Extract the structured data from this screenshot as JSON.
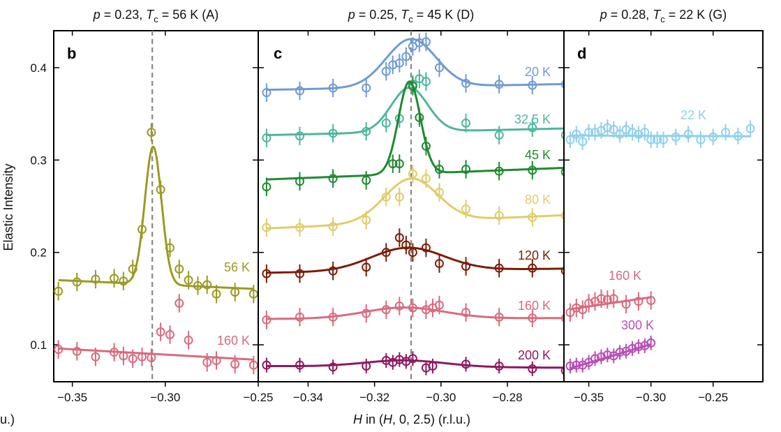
{
  "ylabel": "Elastic Intensity",
  "xlabel": "H in (H, 0, 2.5) (r.l.u.)",
  "cutoff_label": "u.)",
  "ylim": [
    0.06,
    0.44
  ],
  "yticks": [
    "0.1",
    "0.2",
    "0.3",
    "0.4"
  ],
  "colors": {
    "olive": "#9a9a22",
    "pink": "#d96a7e",
    "blue": "#6e9bd4",
    "teal": "#4fb59e",
    "green": "#1e8a30",
    "yellow": "#e0cc6a",
    "brown": "#7a1d08",
    "plum": "#8e1860",
    "lightblue": "#8fd0ec",
    "magenta": "#b74fb7",
    "guide": "#888888"
  },
  "chart_data": [
    {
      "type": "scatter",
      "panel": "b",
      "title": "p = 0.23, Tc = 56 K (A)",
      "title_parts": {
        "p": "p",
        "eq1": " = 0.23, ",
        "T": "T",
        "sub": "c",
        "rest": " = 56 K (A)"
      },
      "xlim": [
        -0.36,
        -0.25
      ],
      "xticks": [
        "-0.35",
        "-0.30",
        "-0.25"
      ],
      "xtick_values": [
        -0.35,
        -0.3,
        -0.25
      ],
      "guide_line_x": -0.307,
      "series": [
        {
          "name": "56 K",
          "color": "olive",
          "x": [
            -0.3575,
            -0.3475,
            -0.3375,
            -0.3275,
            -0.3225,
            -0.3175,
            -0.3125,
            -0.3075,
            -0.3025,
            -0.2975,
            -0.2925,
            -0.2875,
            -0.2825,
            -0.2775,
            -0.2725,
            -0.2625,
            -0.2525
          ],
          "y": [
            0.158,
            0.168,
            0.171,
            0.172,
            0.169,
            0.182,
            0.225,
            0.33,
            0.268,
            0.205,
            0.182,
            0.17,
            0.164,
            0.165,
            0.155,
            0.157,
            0.155
          ],
          "err": 0.01,
          "fit": {
            "base": 0.17,
            "slope": -0.09,
            "amp": 0.149,
            "center": -0.3065,
            "width": 0.0045
          }
        },
        {
          "name": "160 K",
          "color": "pink",
          "x": [
            -0.3575,
            -0.3475,
            -0.3375,
            -0.3275,
            -0.3225,
            -0.3175,
            -0.3125,
            -0.3075,
            -0.3025,
            -0.2975,
            -0.2925,
            -0.2875,
            -0.2775,
            -0.2725,
            -0.2625,
            -0.2525
          ],
          "y": [
            0.095,
            0.093,
            0.087,
            0.092,
            0.088,
            0.085,
            0.087,
            0.086,
            0.114,
            0.111,
            0.145,
            0.105,
            0.081,
            0.083,
            0.079,
            0.078
          ],
          "err": 0.01,
          "fit": {
            "base": 0.096,
            "slope": -0.115,
            "amp": 0,
            "center": -0.3,
            "width": 0.01
          }
        }
      ]
    },
    {
      "type": "scatter",
      "panel": "c",
      "title": "p = 0.25, Tc = 45 K (D)",
      "title_parts": {
        "p": "p",
        "eq1": " = 0.25, ",
        "T": "T",
        "sub": "c",
        "rest": " = 45 K (D)"
      },
      "xlim": [
        -0.355,
        -0.263
      ],
      "xticks": [
        "-0.34",
        "-0.32",
        "-0.30",
        "-0.28"
      ],
      "xtick_values": [
        -0.34,
        -0.32,
        -0.3,
        -0.28
      ],
      "guide_line_x": -0.309,
      "series": [
        {
          "name": "20 K",
          "color": "blue",
          "x": [
            -0.3525,
            -0.3425,
            -0.3325,
            -0.3225,
            -0.3165,
            -0.3145,
            -0.3125,
            -0.3105,
            -0.3085,
            -0.3065,
            -0.3045,
            -0.3005,
            -0.2925,
            -0.2825,
            -0.2725,
            -0.2625
          ],
          "y": [
            0.373,
            0.375,
            0.378,
            0.378,
            0.396,
            0.403,
            0.405,
            0.412,
            0.423,
            0.427,
            0.428,
            0.4,
            0.383,
            0.382,
            0.381,
            0.382
          ],
          "err": 0.01,
          "fit": {
            "base": 0.376,
            "slope": 0.07,
            "amp": 0.052,
            "center": -0.309,
            "width": 0.0075
          }
        },
        {
          "name": "32.5 K",
          "color": "teal",
          "x": [
            -0.3525,
            -0.3425,
            -0.3325,
            -0.3225,
            -0.3165,
            -0.3125,
            -0.3085,
            -0.3065,
            -0.3045,
            -0.2925,
            -0.2825,
            -0.2725,
            -0.2625
          ],
          "y": [
            0.324,
            0.326,
            0.329,
            0.331,
            0.34,
            0.345,
            0.382,
            0.388,
            0.385,
            0.34,
            0.327,
            0.335,
            0.327
          ],
          "err": 0.01,
          "fit": {
            "base": 0.327,
            "slope": 0.08,
            "amp": 0.048,
            "center": -0.3095,
            "width": 0.0055
          }
        },
        {
          "name": "45 K",
          "color": "green",
          "x": [
            -0.3525,
            -0.3425,
            -0.3325,
            -0.3225,
            -0.3145,
            -0.3125,
            -0.3085,
            -0.3065,
            -0.3045,
            -0.3005,
            -0.2925,
            -0.2825,
            -0.2725,
            -0.2625
          ],
          "y": [
            0.271,
            0.277,
            0.28,
            0.278,
            0.296,
            0.296,
            0.38,
            0.346,
            0.315,
            0.29,
            0.29,
            0.288,
            0.289,
            0.287
          ],
          "err": 0.01,
          "fit": {
            "base": 0.279,
            "slope": 0.14,
            "amp": 0.1,
            "center": -0.3095,
            "width": 0.0033
          }
        },
        {
          "name": "80 K",
          "color": "yellow",
          "x": [
            -0.3525,
            -0.3425,
            -0.3325,
            -0.3225,
            -0.3165,
            -0.3125,
            -0.3085,
            -0.3045,
            -0.3005,
            -0.2925,
            -0.2825,
            -0.2725,
            -0.2625
          ],
          "y": [
            0.227,
            0.227,
            0.228,
            0.235,
            0.26,
            0.26,
            0.285,
            0.28,
            0.265,
            0.247,
            0.24,
            0.238,
            0.24
          ],
          "err": 0.01,
          "fit": {
            "base": 0.226,
            "slope": 0.16,
            "amp": 0.047,
            "center": -0.309,
            "width": 0.008
          }
        },
        {
          "name": "120 K",
          "color": "brown",
          "x": [
            -0.3525,
            -0.3425,
            -0.3325,
            -0.3225,
            -0.3165,
            -0.3125,
            -0.3105,
            -0.3085,
            -0.3045,
            -0.3005,
            -0.2925,
            -0.2825,
            -0.2725,
            -0.2625
          ],
          "y": [
            0.177,
            0.177,
            0.18,
            0.184,
            0.2,
            0.216,
            0.208,
            0.2,
            0.205,
            0.188,
            0.185,
            0.183,
            0.183,
            0.18
          ],
          "err": 0.01,
          "fit": {
            "base": 0.178,
            "slope": 0.05,
            "amp": 0.025,
            "center": -0.31,
            "width": 0.011
          }
        },
        {
          "name": "160 K",
          "color": "pink",
          "x": [
            -0.3525,
            -0.3425,
            -0.3325,
            -0.3225,
            -0.3165,
            -0.3125,
            -0.3085,
            -0.3045,
            -0.3025,
            -0.3005,
            -0.2925,
            -0.2825,
            -0.2725,
            -0.2625
          ],
          "y": [
            0.127,
            0.13,
            0.13,
            0.134,
            0.138,
            0.142,
            0.14,
            0.138,
            0.14,
            0.143,
            0.135,
            0.13,
            0.129,
            0.129
          ],
          "err": 0.01,
          "fit": {
            "base": 0.128,
            "slope": 0.01,
            "amp": 0.012,
            "center": -0.311,
            "width": 0.012
          }
        },
        {
          "name": "200 K",
          "color": "plum",
          "x": [
            -0.3525,
            -0.3425,
            -0.3325,
            -0.3225,
            -0.3165,
            -0.3145,
            -0.3125,
            -0.3105,
            -0.3085,
            -0.3045,
            -0.3025,
            -0.2925,
            -0.2825,
            -0.2725,
            -0.2625
          ],
          "y": [
            0.078,
            0.078,
            0.076,
            0.077,
            0.083,
            0.081,
            0.084,
            0.082,
            0.085,
            0.075,
            0.077,
            0.079,
            0.077,
            0.074,
            0.072
          ],
          "err": 0.008,
          "fit": {
            "base": 0.077,
            "slope": -0.02,
            "amp": 0.007,
            "center": -0.311,
            "width": 0.012
          }
        }
      ]
    },
    {
      "type": "scatter",
      "panel": "d",
      "title": "p = 0.28, Tc = 22 K (G)",
      "title_parts": {
        "p": "p",
        "eq1": " = 0.28, ",
        "T": "T",
        "sub": "c",
        "rest": " = 22 K (G)"
      },
      "xlim": [
        -0.37,
        -0.21
      ],
      "xticks": [
        "-0.35",
        "-0.30",
        "-0.25"
      ],
      "xtick_values": [
        -0.35,
        -0.3,
        -0.25
      ],
      "guide_line_x": null,
      "series": [
        {
          "name": "22 K",
          "color": "lightblue",
          "x": [
            -0.365,
            -0.36,
            -0.355,
            -0.35,
            -0.345,
            -0.34,
            -0.335,
            -0.33,
            -0.325,
            -0.32,
            -0.315,
            -0.31,
            -0.305,
            -0.3,
            -0.295,
            -0.29,
            -0.28,
            -0.27,
            -0.26,
            -0.25,
            -0.24,
            -0.23,
            -0.22
          ],
          "y": [
            0.322,
            0.328,
            0.32,
            0.33,
            0.33,
            0.332,
            0.335,
            0.333,
            0.328,
            0.333,
            0.33,
            0.328,
            0.33,
            0.322,
            0.322,
            0.322,
            0.325,
            0.328,
            0.322,
            0.325,
            0.33,
            0.326,
            0.334
          ],
          "err": 0.009,
          "fit": {
            "base": 0.3265,
            "slope": -0.005,
            "amp": 0,
            "center": -0.3,
            "width": 0.01
          }
        },
        {
          "name": "160 K",
          "color": "pink",
          "x": [
            -0.365,
            -0.36,
            -0.355,
            -0.35,
            -0.345,
            -0.34,
            -0.335,
            -0.33,
            -0.32,
            -0.31,
            -0.3
          ],
          "y": [
            0.135,
            0.14,
            0.138,
            0.145,
            0.147,
            0.15,
            0.149,
            0.15,
            0.144,
            0.147,
            0.148
          ],
          "err": 0.01,
          "fit": {
            "base": 0.1385,
            "slope": 0.2,
            "amp": 0,
            "center": -0.3,
            "width": 0.01
          }
        },
        {
          "name": "300 K",
          "color": "magenta",
          "x": [
            -0.365,
            -0.36,
            -0.355,
            -0.35,
            -0.345,
            -0.34,
            -0.335,
            -0.33,
            -0.325,
            -0.32,
            -0.315,
            -0.31,
            -0.305,
            -0.3
          ],
          "y": [
            0.077,
            0.078,
            0.078,
            0.081,
            0.085,
            0.087,
            0.089,
            0.088,
            0.092,
            0.093,
            0.096,
            0.098,
            0.099,
            0.102
          ],
          "err": 0.008,
          "fit": {
            "base": 0.0745,
            "slope": 0.4,
            "amp": 0,
            "center": -0.3,
            "width": 0.01
          }
        }
      ]
    }
  ]
}
